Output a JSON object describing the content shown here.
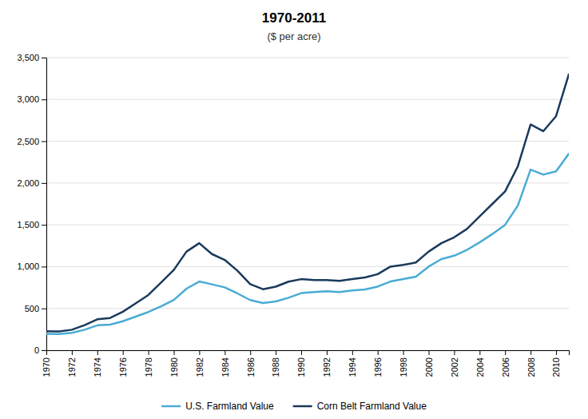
{
  "chart_data": {
    "type": "line",
    "title": "1970-2011",
    "subtitle": "($ per acre)",
    "x": [
      1970,
      1971,
      1972,
      1973,
      1974,
      1975,
      1976,
      1977,
      1978,
      1979,
      1980,
      1981,
      1982,
      1983,
      1984,
      1985,
      1986,
      1987,
      1988,
      1989,
      1990,
      1991,
      1992,
      1993,
      1994,
      1995,
      1996,
      1997,
      1998,
      1999,
      2000,
      2001,
      2002,
      2003,
      2004,
      2005,
      2006,
      2007,
      2008,
      2009,
      2010,
      2011
    ],
    "series": [
      {
        "name": "U.S. Farmland Value",
        "color": "#4aacd4",
        "values": [
          196,
          194,
          208,
          245,
          298,
          306,
          347,
          402,
          457,
          524,
          601,
          736,
          822,
          788,
          752,
          679,
          600,
          564,
          583,
          628,
          683,
          695,
          706,
          696,
          714,
          727,
          761,
          822,
          851,
          880,
          1000,
          1090,
          1130,
          1200,
          1290,
          1390,
          1500,
          1730,
          2160,
          2100,
          2140,
          2350
        ]
      },
      {
        "name": "Corn Belt Farmland Value",
        "color": "#1a3a5c",
        "values": [
          228,
          225,
          245,
          300,
          370,
          385,
          460,
          560,
          660,
          810,
          960,
          1180,
          1280,
          1150,
          1080,
          950,
          790,
          730,
          760,
          820,
          850,
          840,
          840,
          830,
          850,
          870,
          910,
          1000,
          1020,
          1050,
          1180,
          1280,
          1350,
          1450,
          1600,
          1750,
          1900,
          2200,
          2700,
          2620,
          2800,
          3300
        ]
      }
    ],
    "xlim": [
      1970,
      2011
    ],
    "xticks": [
      1970,
      1972,
      1974,
      1976,
      1978,
      1980,
      1982,
      1984,
      1986,
      1988,
      1990,
      1992,
      1994,
      1996,
      1998,
      2000,
      2002,
      2004,
      2006,
      2008,
      2010
    ],
    "ylim": [
      0,
      3500
    ],
    "yticks": [
      0,
      500,
      {
        "value": 1000,
        "label": "1,000"
      },
      {
        "value": 1500,
        "label": "1,500"
      },
      {
        "value": 2000,
        "label": "2,000"
      },
      {
        "value": 2500,
        "label": "2,500"
      },
      {
        "value": 3000,
        "label": "3,000"
      },
      {
        "value": 3500,
        "label": "3,500"
      }
    ],
    "grid": true,
    "legend": "bottom"
  }
}
